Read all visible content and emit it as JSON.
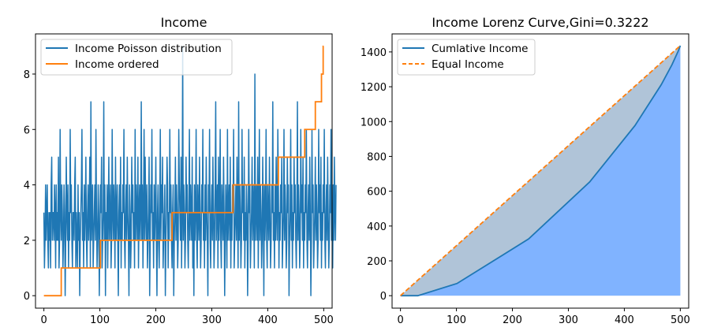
{
  "chart_data": [
    {
      "type": "line",
      "title": "Income",
      "xlabel": "",
      "ylabel": "",
      "xlim": [
        -15,
        515
      ],
      "ylim": [
        -0.45,
        9.45
      ],
      "xticks": [
        0,
        100,
        200,
        300,
        400,
        500
      ],
      "yticks": [
        0,
        2,
        4,
        6,
        8
      ],
      "grid": false,
      "legend_position": "top-left",
      "series": [
        {
          "name": "Income Poisson distribution",
          "color": "#1f77b4",
          "style": "solid",
          "x_start": 0,
          "x_step": 1,
          "values": [
            3,
            1,
            2,
            4,
            2,
            3,
            4,
            2,
            1,
            3,
            2,
            3,
            1,
            4,
            5,
            2,
            3,
            3,
            2,
            4,
            3,
            1,
            4,
            2,
            3,
            2,
            5,
            1,
            2,
            6,
            3,
            2,
            4,
            3,
            1,
            2,
            4,
            3,
            0,
            2,
            5,
            3,
            2,
            4,
            1,
            3,
            2,
            6,
            3,
            4,
            2,
            1,
            3,
            3,
            2,
            4,
            5,
            1,
            3,
            2,
            1,
            4,
            2,
            3,
            0,
            2,
            3,
            4,
            6,
            2,
            3,
            1,
            4,
            2,
            3,
            5,
            2,
            1,
            3,
            4,
            2,
            3,
            5,
            1,
            7,
            2,
            3,
            4,
            1,
            2,
            3,
            4,
            2,
            6,
            3,
            1,
            2,
            4,
            3,
            0,
            2,
            4,
            3,
            5,
            1,
            2,
            3,
            7,
            2,
            4,
            0,
            3,
            2,
            4,
            1,
            3,
            5,
            2,
            3,
            4,
            1,
            2,
            6,
            3,
            2,
            4,
            3,
            1,
            5,
            2,
            3,
            4,
            2,
            0,
            3,
            4,
            2,
            5,
            1,
            3,
            2,
            4,
            3,
            6,
            2,
            1,
            3,
            4,
            2,
            5,
            3,
            2,
            0,
            4,
            3,
            1,
            2,
            5,
            3,
            4,
            2,
            3,
            1,
            6,
            2,
            4,
            3,
            2,
            5,
            1,
            3,
            4,
            2,
            3,
            7,
            2,
            4,
            1,
            3,
            6,
            2,
            5,
            3,
            2,
            4,
            1,
            2,
            3,
            5,
            0,
            2,
            4,
            3,
            6,
            2,
            3,
            1,
            4,
            2,
            3,
            5,
            2,
            0,
            3,
            4,
            2,
            1,
            3,
            6,
            2,
            4,
            3,
            5,
            1,
            2,
            3,
            4,
            0,
            2,
            3,
            5,
            4,
            1,
            3,
            2,
            6,
            3,
            4,
            2,
            1,
            3,
            4,
            0,
            2,
            3,
            5,
            2,
            4,
            3,
            1,
            2,
            6,
            4,
            3,
            2,
            5,
            1,
            3,
            9,
            2,
            4,
            3,
            1,
            2,
            5,
            3,
            4,
            2,
            1,
            3,
            6,
            2,
            4,
            3,
            2,
            5,
            1,
            3,
            0,
            4,
            2,
            3,
            6,
            2,
            1,
            4,
            3,
            2,
            5,
            3,
            1,
            2,
            4,
            3,
            6,
            2,
            3,
            1,
            4,
            2,
            5,
            3,
            2,
            0,
            4,
            3,
            6,
            2,
            1,
            3,
            4,
            2,
            5,
            3,
            1,
            2,
            4,
            7,
            2,
            3,
            4,
            1,
            5,
            2,
            3,
            6,
            2,
            1,
            4,
            3,
            2,
            5,
            3,
            0,
            2,
            4,
            3,
            1,
            6,
            2,
            3,
            4,
            2,
            5,
            1,
            3,
            2,
            4,
            3,
            6,
            1,
            2,
            3,
            4,
            2,
            5,
            3,
            1,
            7,
            2,
            4,
            3,
            1,
            2,
            6,
            3,
            4,
            2,
            5,
            1,
            3,
            2,
            4,
            3,
            0,
            2,
            6,
            3,
            4,
            1,
            2,
            3,
            5,
            2,
            4,
            3,
            1,
            8,
            2,
            3,
            4,
            2,
            5,
            1,
            3,
            6,
            2,
            4,
            3,
            1,
            2,
            5,
            3,
            0,
            4,
            2,
            3,
            6,
            2,
            1,
            4,
            3,
            2,
            5,
            3,
            1,
            2,
            4,
            3,
            7,
            2,
            3,
            1,
            4,
            2,
            5,
            3,
            2,
            6,
            4,
            1,
            3,
            2,
            4,
            3,
            5,
            1,
            2,
            3,
            6,
            2,
            4,
            3,
            1,
            2,
            5,
            3,
            4,
            0,
            2,
            3,
            6,
            2,
            4,
            1,
            3,
            2,
            5,
            3,
            4,
            2,
            1,
            3,
            7,
            2,
            4,
            3,
            1,
            2,
            6,
            3,
            4,
            2,
            5,
            1,
            3,
            2,
            4,
            3,
            6,
            2,
            1,
            3,
            4,
            2,
            5,
            3,
            0,
            2,
            6,
            3,
            4,
            1,
            2,
            3,
            5,
            2,
            4,
            3,
            1,
            2,
            6,
            3,
            4,
            2,
            5,
            1,
            3,
            2,
            4,
            3,
            6,
            2,
            1,
            3,
            4,
            2,
            5,
            3,
            1,
            2,
            4,
            3,
            6,
            2,
            3,
            1,
            4,
            2,
            5,
            3,
            2,
            4
          ]
        },
        {
          "name": "Income ordered",
          "color": "#ff7f0e",
          "style": "solid",
          "steps": [
            {
              "value": 0,
              "from": 0,
              "to": 31
            },
            {
              "value": 1,
              "from": 31,
              "to": 101
            },
            {
              "value": 2,
              "from": 101,
              "to": 229
            },
            {
              "value": 3,
              "from": 229,
              "to": 338
            },
            {
              "value": 4,
              "from": 338,
              "to": 419
            },
            {
              "value": 5,
              "from": 419,
              "to": 466
            },
            {
              "value": 6,
              "from": 466,
              "to": 485
            },
            {
              "value": 7,
              "from": 485,
              "to": 496
            },
            {
              "value": 8,
              "from": 496,
              "to": 499
            },
            {
              "value": 9,
              "from": 499,
              "to": 500
            }
          ]
        }
      ]
    },
    {
      "type": "area",
      "title": "Income Lorenz Curve,Gini=0.3222",
      "xlabel": "",
      "ylabel": "",
      "xlim": [
        -15,
        515
      ],
      "ylim": [
        -71.6,
        1503.6
      ],
      "xticks": [
        0,
        100,
        200,
        300,
        400,
        500
      ],
      "yticks": [
        0,
        200,
        400,
        600,
        800,
        1000,
        1200,
        1400
      ],
      "grid": false,
      "legend_position": "top-left",
      "series": [
        {
          "name": "Cumlative Income",
          "color": "#1f77b4",
          "fill": "#80b3ff",
          "style": "solid",
          "x": [
            0,
            31,
            101,
            229,
            338,
            419,
            466,
            485,
            496,
            499,
            500
          ],
          "values": [
            0,
            0,
            70,
            326,
            653,
            977,
            1212,
            1326,
            1403,
            1427,
            1436
          ]
        },
        {
          "name": "Equal Income",
          "color": "#ff7f0e",
          "fill": "#b0c4d8",
          "style": "dashed",
          "x": [
            0,
            500
          ],
          "values": [
            0,
            1436
          ]
        }
      ]
    }
  ]
}
